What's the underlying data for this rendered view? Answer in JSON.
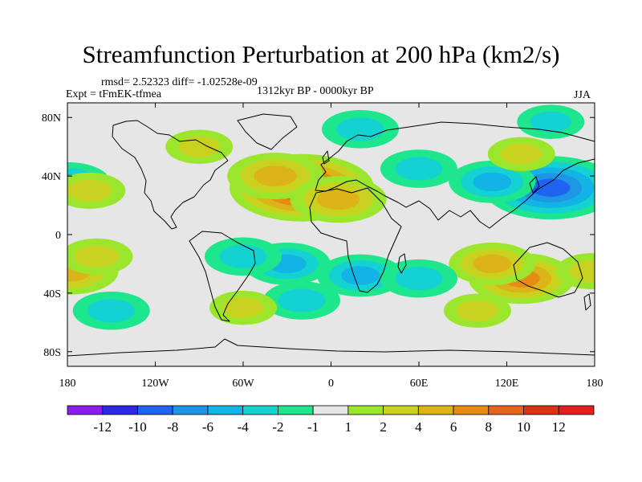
{
  "chart_data": {
    "type": "heatmap",
    "title": "Streamfunction Perturbation at 200 hPa (km2/s)",
    "stats": "rmsd= 2.52323 diff= -1.02528e-09",
    "experiment": "Expt = tFmEK-tfmea",
    "period": "1312kyr BP - 0000kyr BP",
    "season": "JJA",
    "xlim": [
      -180,
      180
    ],
    "ylim": [
      -90,
      90
    ],
    "x_ticks": [
      {
        "value": -180,
        "label": "180"
      },
      {
        "value": -120,
        "label": "120W"
      },
      {
        "value": -60,
        "label": "60W"
      },
      {
        "value": 0,
        "label": "0"
      },
      {
        "value": 60,
        "label": "60E"
      },
      {
        "value": 120,
        "label": "120E"
      },
      {
        "value": 180,
        "label": "180"
      }
    ],
    "y_ticks": [
      {
        "value": 80,
        "label": "80N"
      },
      {
        "value": 40,
        "label": "40N"
      },
      {
        "value": 0,
        "label": "0"
      },
      {
        "value": -40,
        "label": "40S"
      },
      {
        "value": -80,
        "label": "80S"
      }
    ],
    "colorbar": {
      "labels": [
        "-12",
        "-10",
        "-8",
        "-6",
        "-4",
        "-2",
        "-1",
        "1",
        "2",
        "4",
        "6",
        "8",
        "10",
        "12"
      ],
      "colors": [
        "#8c1df0",
        "#2b28e6",
        "#1e64f0",
        "#1e96e6",
        "#12b4e6",
        "#14d2d2",
        "#1ee68c",
        "#e6e6e6",
        "#9be62d",
        "#c8d21e",
        "#dcb419",
        "#e68c14",
        "#e6641e",
        "#dc3214",
        "#e61e1e"
      ]
    },
    "anomalies": [
      {
        "lon": -20,
        "lat": 32,
        "value": 10
      },
      {
        "lon": -38,
        "lat": 40,
        "value": 5
      },
      {
        "lon": 5,
        "lat": 24,
        "value": 5
      },
      {
        "lon": 150,
        "lat": 32,
        "value": -9
      },
      {
        "lon": 110,
        "lat": 36,
        "value": -4
      },
      {
        "lon": 60,
        "lat": 45,
        "value": -3
      },
      {
        "lon": -180,
        "lat": 35,
        "value": -4
      },
      {
        "lon": -165,
        "lat": 30,
        "value": 2.5
      },
      {
        "lon": 130,
        "lat": -30,
        "value": 6
      },
      {
        "lon": 110,
        "lat": -20,
        "value": 4
      },
      {
        "lon": 178,
        "lat": -25,
        "value": 2.5
      },
      {
        "lon": -178,
        "lat": -25,
        "value": 5
      },
      {
        "lon": -160,
        "lat": -15,
        "value": 2.5
      },
      {
        "lon": -30,
        "lat": -20,
        "value": -4
      },
      {
        "lon": -60,
        "lat": -15,
        "value": -3
      },
      {
        "lon": 20,
        "lat": -28,
        "value": -4
      },
      {
        "lon": 60,
        "lat": -30,
        "value": -3
      },
      {
        "lon": -20,
        "lat": -45,
        "value": -3
      },
      {
        "lon": 20,
        "lat": 72,
        "value": -3
      },
      {
        "lon": -150,
        "lat": -52,
        "value": -3
      },
      {
        "lon": 100,
        "lat": -52,
        "value": 2
      },
      {
        "lon": -60,
        "lat": -50,
        "value": 2
      },
      {
        "lon": 150,
        "lat": 77,
        "value": -2
      },
      {
        "lon": -90,
        "lat": 60,
        "value": 2
      },
      {
        "lon": 130,
        "lat": 55,
        "value": 2
      }
    ]
  }
}
